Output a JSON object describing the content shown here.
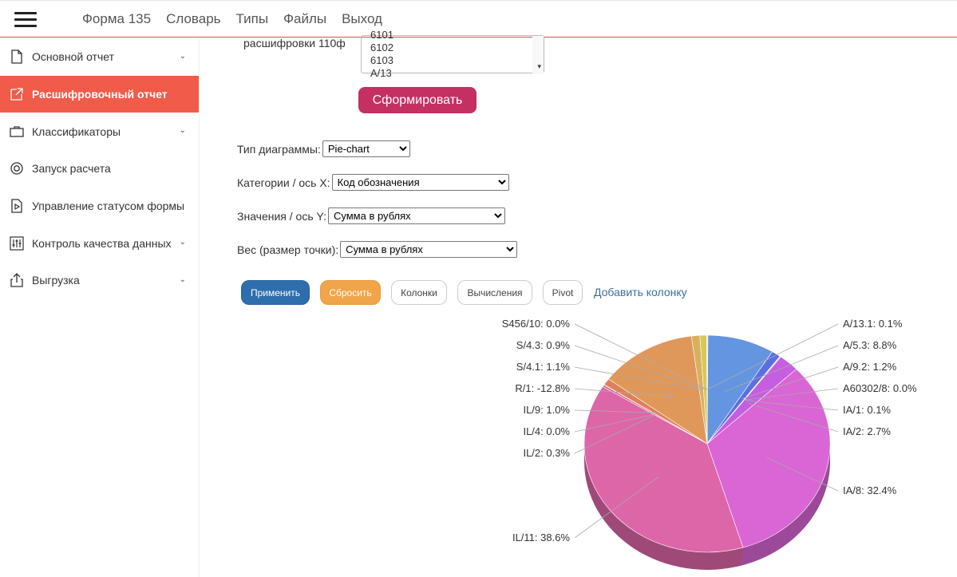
{
  "header": {
    "nav": [
      "Форма 135",
      "Словарь",
      "Типы",
      "Файлы",
      "Выход"
    ]
  },
  "sidebar": {
    "items": [
      {
        "label": "Основной отчет",
        "icon": "document-icon",
        "chevron": true,
        "active": false
      },
      {
        "label": "Расшифровочный отчет",
        "icon": "external-link-icon",
        "chevron": false,
        "active": true
      },
      {
        "label": "Классификаторы",
        "icon": "briefcase-icon",
        "chevron": true,
        "active": false
      },
      {
        "label": "Запуск расчета",
        "icon": "lifebuoy-icon",
        "chevron": false,
        "active": false
      },
      {
        "label": "Управление статусом формы",
        "icon": "play-file-icon",
        "chevron": false,
        "active": false
      },
      {
        "label": "Контроль качества данных",
        "icon": "sliders-icon",
        "chevron": true,
        "active": false
      },
      {
        "label": "Выгрузка",
        "icon": "upload-icon",
        "chevron": true,
        "active": false
      }
    ]
  },
  "form": {
    "rasshifr_label": "расшифровки 110ф",
    "listbox_items": [
      "6101",
      "6102",
      "6103",
      "A/13"
    ],
    "submit_label": "Сформировать",
    "chart_type_label": "Тип диаграммы:",
    "chart_type_value": "Pie-chart",
    "x_label": "Категории / ось X:",
    "x_value": "Код обозначения",
    "y_label": "Значения / ось Y:",
    "y_value": "Сумма в рублях",
    "weight_label": "Вес (размер точки):",
    "weight_value": "Сумма в рублях"
  },
  "toolbar": {
    "apply": "Применить",
    "reset": "Сбросить",
    "columns": "Колонки",
    "calc": "Вычисления",
    "pivot": "Pivot",
    "add_column": "Добавить колонку"
  },
  "colors": {
    "accent": "#f15b4a",
    "submit": "#c43062",
    "primary": "#2e6ead",
    "warning": "#f0a54a"
  },
  "chart_data": {
    "type": "pie",
    "slices": [
      {
        "label": "A/13.1",
        "value": 0.1,
        "text": "A/13.1: 0.1%",
        "color": "#5b5bd6"
      },
      {
        "label": "A/5.3",
        "value": 8.8,
        "text": "A/5.3: 8.8%",
        "color": "#6495e0"
      },
      {
        "label": "A/9.2",
        "value": 1.2,
        "text": "A/9.2: 1.2%",
        "color": "#5a6fe0"
      },
      {
        "label": "A60302/8",
        "value": 0.0,
        "text": "A60302/8: 0.0%",
        "color": "#7a5be0"
      },
      {
        "label": "IA/1",
        "value": 0.1,
        "text": "IA/1: 0.1%",
        "color": "#9b5be0"
      },
      {
        "label": "IA/2",
        "value": 2.7,
        "text": "IA/2: 2.7%",
        "color": "#c55ee0"
      },
      {
        "label": "IA/8",
        "value": 32.4,
        "text": "IA/8: 32.4%",
        "color": "#d966d4"
      },
      {
        "label": "IL/11",
        "value": 38.6,
        "text": "IL/11: 38.6%",
        "color": "#dd66a8"
      },
      {
        "label": "IL/2",
        "value": 0.3,
        "text": "IL/2: 0.3%",
        "color": "#dd6688"
      },
      {
        "label": "IL/4",
        "value": 0.0,
        "text": "IL/4: 0.0%",
        "color": "#de6a6a"
      },
      {
        "label": "IL/9",
        "value": 1.0,
        "text": "IL/9: 1.0%",
        "color": "#e0805a"
      },
      {
        "label": "R/1",
        "value": -12.8,
        "text": "R/1: -12.8%",
        "color": "#e0985a"
      },
      {
        "label": "S/4.1",
        "value": 1.1,
        "text": "S/4.1: 1.1%",
        "color": "#d8b060"
      },
      {
        "label": "S/4.3",
        "value": 0.9,
        "text": "S/4.3: 0.9%",
        "color": "#d8c85a"
      },
      {
        "label": "S456/10",
        "value": 0.0,
        "text": "S456/10: 0.0%",
        "color": "#c8d860"
      }
    ],
    "render_weights": [
      0.1,
      8.8,
      1.2,
      0.05,
      0.1,
      2.7,
      32.4,
      38.6,
      0.3,
      0.05,
      1.0,
      12.8,
      1.1,
      0.9,
      0.05
    ]
  }
}
